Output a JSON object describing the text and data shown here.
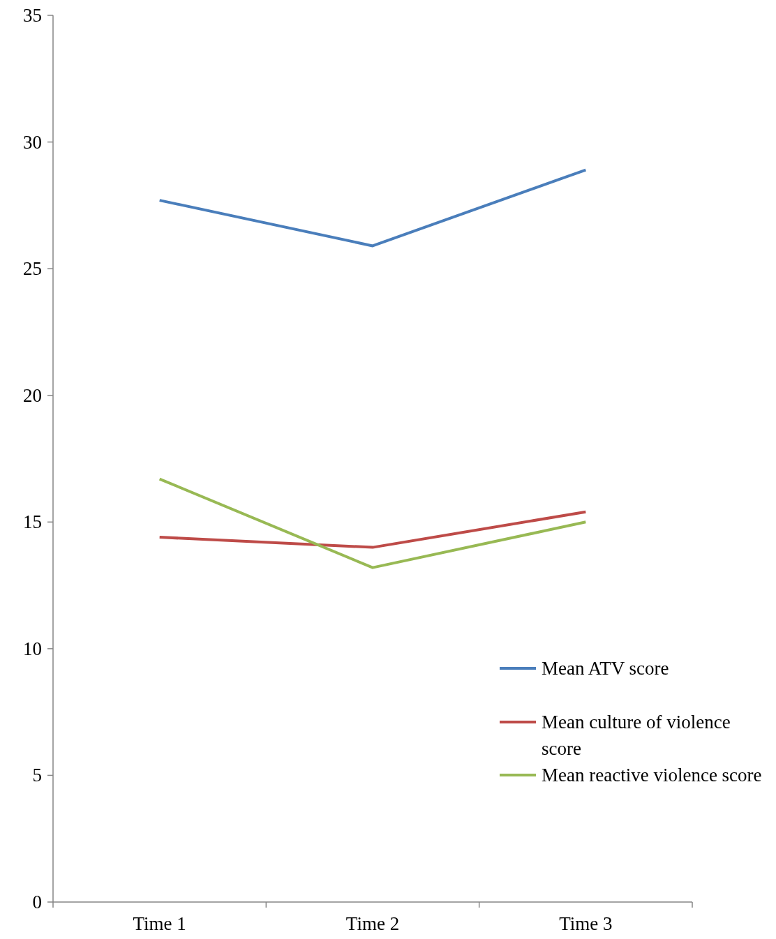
{
  "chart_data": {
    "type": "line",
    "categories": [
      "Time 1",
      "Time 2",
      "Time 3"
    ],
    "series": [
      {
        "name": "Mean ATV score",
        "color": "#4a7ebb",
        "values": [
          27.7,
          25.9,
          28.9
        ]
      },
      {
        "name": "Mean culture of violence score",
        "color": "#be4b48",
        "values": [
          14.4,
          14.0,
          15.4
        ]
      },
      {
        "name": "Mean reactive violence score",
        "color": "#98b954",
        "values": [
          16.7,
          13.2,
          15.0
        ]
      }
    ],
    "ylim": [
      0,
      35
    ],
    "yticks": [
      0,
      5,
      10,
      15,
      20,
      25,
      30,
      35
    ],
    "grid": false,
    "legend": "right",
    "marker": "none",
    "line_style": "solid"
  }
}
